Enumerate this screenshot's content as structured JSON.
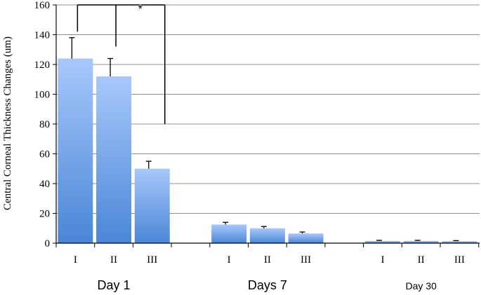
{
  "chart_data": {
    "type": "bar",
    "ylabel": "Central Corneal Thickness Changes (um)",
    "ylim": [
      0,
      160
    ],
    "yticks": [
      0,
      20,
      40,
      60,
      80,
      100,
      120,
      140,
      160
    ],
    "grid": true,
    "groups": [
      {
        "label": "Day 1",
        "categories": [
          "I",
          "II",
          "III"
        ],
        "values": [
          124,
          112,
          50
        ],
        "errors": [
          14,
          12,
          5
        ]
      },
      {
        "label": "Days 7",
        "categories": [
          "I",
          "II",
          "III"
        ],
        "values": [
          12.5,
          10,
          6.5
        ],
        "errors": [
          1.5,
          1.2,
          1.0
        ]
      },
      {
        "label": "Day 30",
        "categories": [
          "I",
          "II",
          "III"
        ],
        "values": [
          1.5,
          1.5,
          1.3
        ],
        "errors": [
          0.4,
          0.4,
          0.4
        ]
      }
    ],
    "annotation": {
      "text": "*",
      "comparison": "Day 1: I vs II vs III"
    },
    "colors": {
      "bar_top": "#a7c8fb",
      "bar_bottom": "#4a86d6",
      "grid": "#8c8c8c",
      "axis": "#000000"
    }
  }
}
